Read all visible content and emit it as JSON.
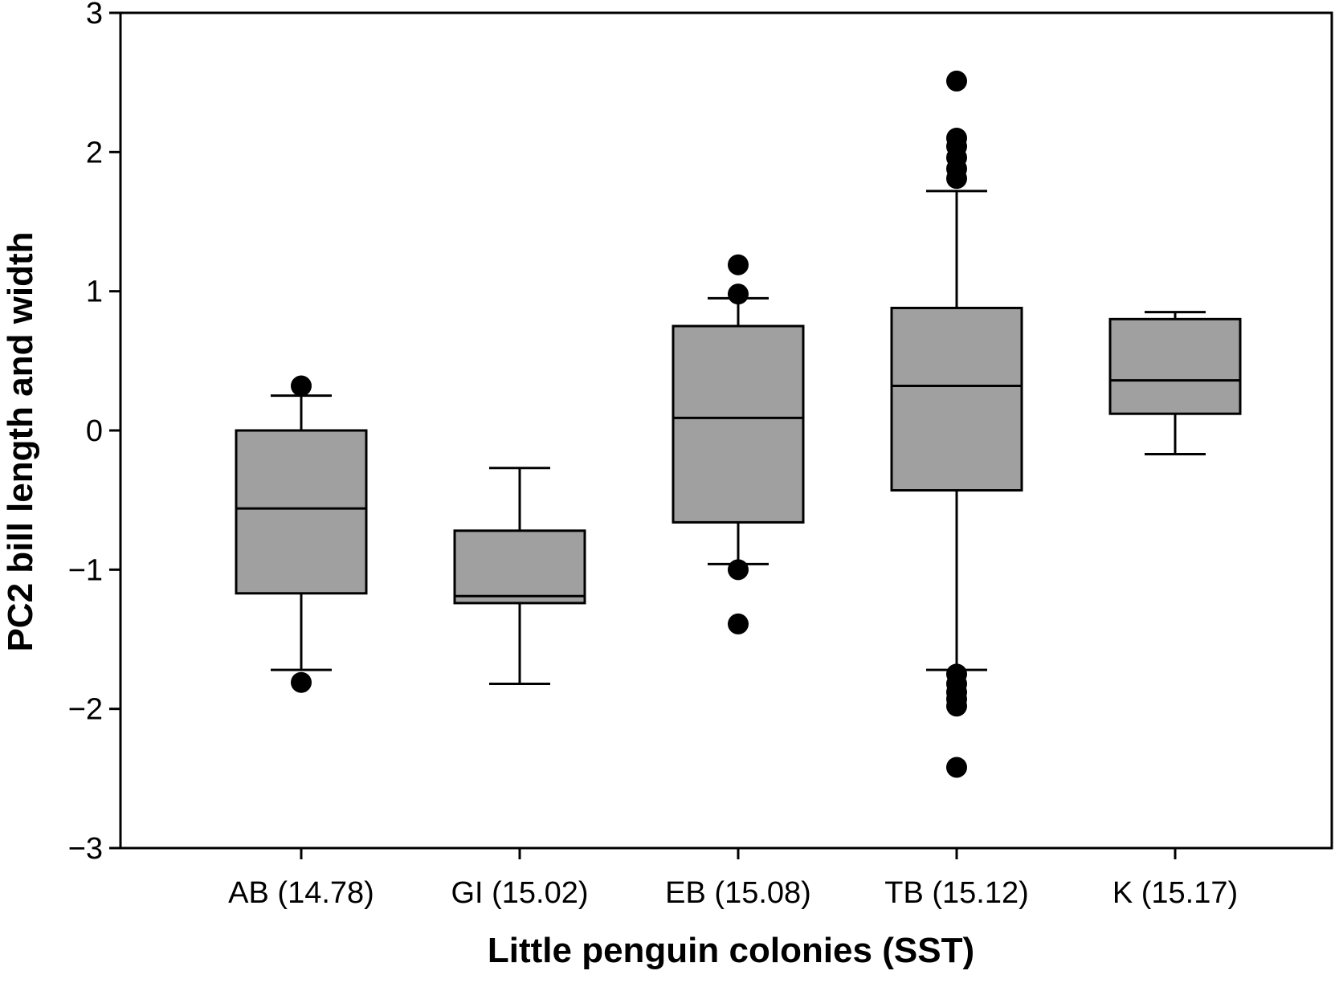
{
  "chart_data": {
    "type": "box",
    "title": "",
    "xlabel": "Little penguin colonies (SST)",
    "ylabel": "PC2 bill length and width",
    "ylim": [
      -3,
      3
    ],
    "yticks": [
      -3,
      -2,
      -1,
      0,
      1,
      2,
      3
    ],
    "ytick_labels": [
      "−3",
      "−2",
      "−1",
      "0",
      "1",
      "2",
      "3"
    ],
    "grid": false,
    "legend": "none",
    "colors": {
      "box_fill": "#a0a0a0",
      "line": "#000000",
      "outlier": "#000000"
    },
    "categories": [
      "AB (14.78)",
      "GI (15.02)",
      "EB (15.08)",
      "TB (15.12)",
      "K (15.17)"
    ],
    "boxes": [
      {
        "q1": -1.17,
        "median": -0.56,
        "q3": 0.0,
        "whisker_low": -1.72,
        "whisker_high": 0.25,
        "outliers": [
          0.32,
          -1.81
        ]
      },
      {
        "q1": -1.24,
        "median": -1.19,
        "q3": -0.72,
        "whisker_low": -1.82,
        "whisker_high": -0.27,
        "outliers": []
      },
      {
        "q1": -0.66,
        "median": 0.09,
        "q3": 0.75,
        "whisker_low": -0.96,
        "whisker_high": 0.95,
        "outliers": [
          1.19,
          0.98,
          -1.0,
          -1.39
        ]
      },
      {
        "q1": -0.43,
        "median": 0.32,
        "q3": 0.88,
        "whisker_low": -1.72,
        "whisker_high": 1.72,
        "outliers": [
          2.51,
          2.1,
          2.04,
          1.96,
          1.88,
          1.81,
          -1.75,
          -1.82,
          -1.88,
          -1.93,
          -1.98,
          -2.42
        ]
      },
      {
        "q1": 0.12,
        "median": 0.36,
        "q3": 0.8,
        "whisker_low": -0.17,
        "whisker_high": 0.85,
        "outliers": []
      }
    ]
  }
}
